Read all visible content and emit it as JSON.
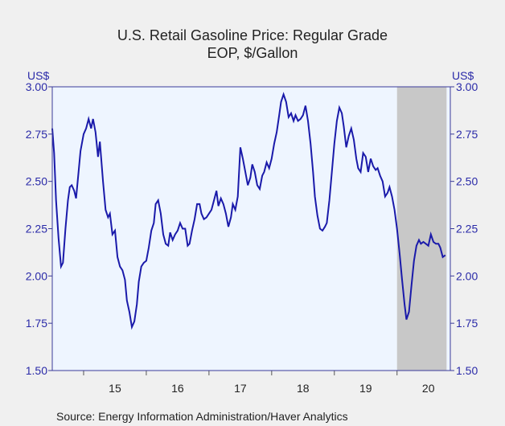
{
  "chart_data": {
    "type": "line",
    "title": "U.S. Retail Gasoline Price: Regular Grade",
    "subtitle": "EOP, $/Gallon",
    "ylabel_left": "US$",
    "ylabel_right": "US$",
    "ylim": [
      1.5,
      3.0
    ],
    "yticks": [
      1.5,
      1.75,
      2.0,
      2.25,
      2.5,
      2.75,
      3.0
    ],
    "ytick_labels": [
      "1.50",
      "1.75",
      "2.00",
      "2.25",
      "2.50",
      "2.75",
      "3.00"
    ],
    "xlim": [
      2014.5,
      2020.85
    ],
    "xtick_labels": [
      "15",
      "16",
      "17",
      "18",
      "19",
      "20"
    ],
    "xtick_centers": [
      2015.5,
      2016.5,
      2017.5,
      2018.5,
      2019.5,
      2020.5
    ],
    "year_boundaries": [
      2015,
      2016,
      2017,
      2018,
      2019,
      2020
    ],
    "shaded_region": [
      2020.0,
      2020.79
    ],
    "colors": {
      "line": "#1a1aaa",
      "plot_bg": "#eef5ff",
      "shade": "#c8c8c8",
      "axis": "#3a3a9a"
    },
    "series": [
      {
        "name": "",
        "points": [
          [
            2014.5,
            2.78
          ],
          [
            2014.53,
            2.65
          ],
          [
            2014.56,
            2.4
          ],
          [
            2014.6,
            2.2
          ],
          [
            2014.64,
            2.05
          ],
          [
            2014.67,
            2.07
          ],
          [
            2014.71,
            2.25
          ],
          [
            2014.75,
            2.4
          ],
          [
            2014.78,
            2.47
          ],
          [
            2014.81,
            2.48
          ],
          [
            2014.85,
            2.45
          ],
          [
            2014.88,
            2.41
          ],
          [
            2014.92,
            2.55
          ],
          [
            2014.95,
            2.66
          ],
          [
            2015.0,
            2.75
          ],
          [
            2015.04,
            2.78
          ],
          [
            2015.08,
            2.83
          ],
          [
            2015.12,
            2.78
          ],
          [
            2015.15,
            2.83
          ],
          [
            2015.19,
            2.76
          ],
          [
            2015.23,
            2.63
          ],
          [
            2015.26,
            2.71
          ],
          [
            2015.31,
            2.5
          ],
          [
            2015.35,
            2.35
          ],
          [
            2015.39,
            2.31
          ],
          [
            2015.42,
            2.33
          ],
          [
            2015.46,
            2.22
          ],
          [
            2015.5,
            2.24
          ],
          [
            2015.54,
            2.1
          ],
          [
            2015.58,
            2.05
          ],
          [
            2015.62,
            2.03
          ],
          [
            2015.66,
            1.98
          ],
          [
            2015.69,
            1.87
          ],
          [
            2015.73,
            1.81
          ],
          [
            2015.77,
            1.73
          ],
          [
            2015.81,
            1.76
          ],
          [
            2015.85,
            1.85
          ],
          [
            2015.88,
            1.97
          ],
          [
            2015.92,
            2.05
          ],
          [
            2015.96,
            2.07
          ],
          [
            2016.0,
            2.08
          ],
          [
            2016.04,
            2.15
          ],
          [
            2016.08,
            2.24
          ],
          [
            2016.12,
            2.28
          ],
          [
            2016.15,
            2.38
          ],
          [
            2016.19,
            2.4
          ],
          [
            2016.23,
            2.33
          ],
          [
            2016.27,
            2.22
          ],
          [
            2016.31,
            2.17
          ],
          [
            2016.35,
            2.16
          ],
          [
            2016.38,
            2.23
          ],
          [
            2016.42,
            2.19
          ],
          [
            2016.46,
            2.22
          ],
          [
            2016.5,
            2.24
          ],
          [
            2016.54,
            2.28
          ],
          [
            2016.58,
            2.25
          ],
          [
            2016.62,
            2.25
          ],
          [
            2016.66,
            2.16
          ],
          [
            2016.69,
            2.17
          ],
          [
            2016.73,
            2.24
          ],
          [
            2016.77,
            2.3
          ],
          [
            2016.81,
            2.38
          ],
          [
            2016.85,
            2.38
          ],
          [
            2016.88,
            2.33
          ],
          [
            2016.92,
            2.3
          ],
          [
            2016.96,
            2.31
          ],
          [
            2017.0,
            2.33
          ],
          [
            2017.04,
            2.35
          ],
          [
            2017.08,
            2.4
          ],
          [
            2017.12,
            2.45
          ],
          [
            2017.15,
            2.37
          ],
          [
            2017.19,
            2.41
          ],
          [
            2017.23,
            2.38
          ],
          [
            2017.27,
            2.33
          ],
          [
            2017.31,
            2.26
          ],
          [
            2017.35,
            2.31
          ],
          [
            2017.38,
            2.38
          ],
          [
            2017.42,
            2.35
          ],
          [
            2017.46,
            2.42
          ],
          [
            2017.5,
            2.68
          ],
          [
            2017.54,
            2.62
          ],
          [
            2017.58,
            2.55
          ],
          [
            2017.62,
            2.48
          ],
          [
            2017.66,
            2.52
          ],
          [
            2017.69,
            2.59
          ],
          [
            2017.73,
            2.55
          ],
          [
            2017.77,
            2.48
          ],
          [
            2017.81,
            2.46
          ],
          [
            2017.85,
            2.53
          ],
          [
            2017.88,
            2.55
          ],
          [
            2017.92,
            2.6
          ],
          [
            2017.96,
            2.57
          ],
          [
            2018.0,
            2.62
          ],
          [
            2018.04,
            2.7
          ],
          [
            2018.08,
            2.76
          ],
          [
            2018.12,
            2.85
          ],
          [
            2018.15,
            2.92
          ],
          [
            2018.19,
            2.96
          ],
          [
            2018.23,
            2.92
          ],
          [
            2018.27,
            2.84
          ],
          [
            2018.31,
            2.86
          ],
          [
            2018.35,
            2.82
          ],
          [
            2018.38,
            2.85
          ],
          [
            2018.42,
            2.82
          ],
          [
            2018.46,
            2.83
          ],
          [
            2018.5,
            2.85
          ],
          [
            2018.54,
            2.9
          ],
          [
            2018.58,
            2.82
          ],
          [
            2018.62,
            2.7
          ],
          [
            2018.66,
            2.55
          ],
          [
            2018.69,
            2.42
          ],
          [
            2018.73,
            2.32
          ],
          [
            2018.77,
            2.25
          ],
          [
            2018.81,
            2.24
          ],
          [
            2018.85,
            2.26
          ],
          [
            2018.88,
            2.28
          ],
          [
            2018.92,
            2.4
          ],
          [
            2018.96,
            2.55
          ],
          [
            2019.0,
            2.7
          ],
          [
            2019.04,
            2.82
          ],
          [
            2019.08,
            2.89
          ],
          [
            2019.12,
            2.86
          ],
          [
            2019.15,
            2.79
          ],
          [
            2019.19,
            2.68
          ],
          [
            2019.23,
            2.74
          ],
          [
            2019.27,
            2.78
          ],
          [
            2019.31,
            2.72
          ],
          [
            2019.35,
            2.62
          ],
          [
            2019.38,
            2.57
          ],
          [
            2019.42,
            2.55
          ],
          [
            2019.46,
            2.65
          ],
          [
            2019.5,
            2.63
          ],
          [
            2019.54,
            2.55
          ],
          [
            2019.58,
            2.62
          ],
          [
            2019.62,
            2.58
          ],
          [
            2019.66,
            2.56
          ],
          [
            2019.69,
            2.57
          ],
          [
            2019.73,
            2.53
          ],
          [
            2019.77,
            2.5
          ],
          [
            2019.81,
            2.42
          ],
          [
            2019.85,
            2.44
          ],
          [
            2019.88,
            2.47
          ],
          [
            2019.92,
            2.42
          ],
          [
            2019.96,
            2.35
          ],
          [
            2020.0,
            2.25
          ],
          [
            2020.04,
            2.12
          ],
          [
            2020.08,
            1.98
          ],
          [
            2020.12,
            1.85
          ],
          [
            2020.15,
            1.77
          ],
          [
            2020.19,
            1.81
          ],
          [
            2020.23,
            1.95
          ],
          [
            2020.27,
            2.08
          ],
          [
            2020.31,
            2.16
          ],
          [
            2020.35,
            2.19
          ],
          [
            2020.38,
            2.17
          ],
          [
            2020.42,
            2.18
          ],
          [
            2020.46,
            2.17
          ],
          [
            2020.5,
            2.16
          ],
          [
            2020.54,
            2.22
          ],
          [
            2020.58,
            2.18
          ],
          [
            2020.62,
            2.17
          ],
          [
            2020.66,
            2.17
          ],
          [
            2020.69,
            2.15
          ],
          [
            2020.73,
            2.1
          ],
          [
            2020.77,
            2.11
          ]
        ]
      }
    ]
  },
  "source": "Source:  Energy Information Administration/Haver Analytics"
}
